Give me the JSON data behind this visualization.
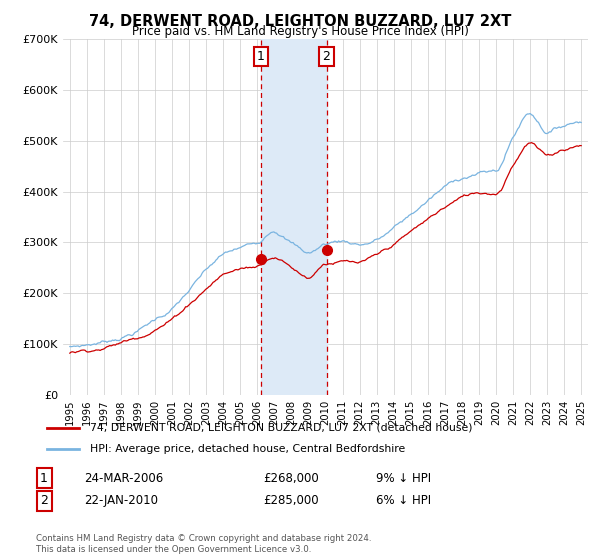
{
  "title": "74, DERWENT ROAD, LEIGHTON BUZZARD, LU7 2XT",
  "subtitle": "Price paid vs. HM Land Registry's House Price Index (HPI)",
  "legend_label_red": "74, DERWENT ROAD, LEIGHTON BUZZARD, LU7 2XT (detached house)",
  "legend_label_blue": "HPI: Average price, detached house, Central Bedfordshire",
  "sale1_date": "24-MAR-2006",
  "sale1_price": "£268,000",
  "sale1_hpi": "9% ↓ HPI",
  "sale2_date": "22-JAN-2010",
  "sale2_price": "£285,000",
  "sale2_hpi": "6% ↓ HPI",
  "sale1_x": 2006.22,
  "sale2_x": 2010.06,
  "sale1_y_red": 268000,
  "sale2_y_red": 285000,
  "ylim": [
    0,
    700000
  ],
  "xlim": [
    1994.6,
    2025.4
  ],
  "hpi_color": "#7ab4e0",
  "price_color": "#cc0000",
  "highlight_color": "#ddeaf7",
  "dash_color": "#cc0000",
  "grid_color": "#cccccc",
  "yticks": [
    0,
    100000,
    200000,
    300000,
    400000,
    500000,
    600000,
    700000
  ],
  "ytick_labels": [
    "£0",
    "£100K",
    "£200K",
    "£300K",
    "£400K",
    "£500K",
    "£600K",
    "£700K"
  ],
  "xticks": [
    1995,
    1996,
    1997,
    1998,
    1999,
    2000,
    2001,
    2002,
    2003,
    2004,
    2005,
    2006,
    2007,
    2008,
    2009,
    2010,
    2011,
    2012,
    2013,
    2014,
    2015,
    2016,
    2017,
    2018,
    2019,
    2020,
    2021,
    2022,
    2023,
    2024,
    2025
  ],
  "footer1": "Contains HM Land Registry data © Crown copyright and database right 2024.",
  "footer2": "This data is licensed under the Open Government Licence v3.0."
}
